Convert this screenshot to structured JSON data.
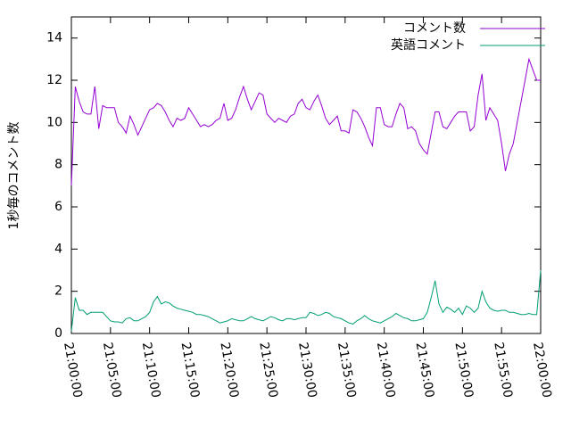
{
  "chart_data": {
    "type": "line",
    "ylabel": "1秒毎のコメント数",
    "x": [
      "21:00:00",
      "21:00:30",
      "21:01:00",
      "21:01:30",
      "21:02:00",
      "21:02:30",
      "21:03:00",
      "21:03:30",
      "21:04:00",
      "21:04:30",
      "21:05:00",
      "21:05:30",
      "21:06:00",
      "21:06:30",
      "21:07:00",
      "21:07:30",
      "21:08:00",
      "21:08:30",
      "21:09:00",
      "21:09:30",
      "21:10:00",
      "21:10:30",
      "21:11:00",
      "21:11:30",
      "21:12:00",
      "21:12:30",
      "21:13:00",
      "21:13:30",
      "21:14:00",
      "21:14:30",
      "21:15:00",
      "21:15:30",
      "21:16:00",
      "21:16:30",
      "21:17:00",
      "21:17:30",
      "21:18:00",
      "21:18:30",
      "21:19:00",
      "21:19:30",
      "21:20:00",
      "21:20:30",
      "21:21:00",
      "21:21:30",
      "21:22:00",
      "21:22:30",
      "21:23:00",
      "21:23:30",
      "21:24:00",
      "21:24:30",
      "21:25:00",
      "21:25:30",
      "21:26:00",
      "21:26:30",
      "21:27:00",
      "21:27:30",
      "21:28:00",
      "21:28:30",
      "21:29:00",
      "21:29:30",
      "21:30:00",
      "21:30:30",
      "21:31:00",
      "21:31:30",
      "21:32:00",
      "21:32:30",
      "21:33:00",
      "21:33:30",
      "21:34:00",
      "21:34:30",
      "21:35:00",
      "21:35:30",
      "21:36:00",
      "21:36:30",
      "21:37:00",
      "21:37:30",
      "21:38:00",
      "21:38:30",
      "21:39:00",
      "21:39:30",
      "21:40:00",
      "21:40:30",
      "21:41:00",
      "21:41:30",
      "21:42:00",
      "21:42:30",
      "21:43:00",
      "21:43:30",
      "21:44:00",
      "21:44:30",
      "21:45:00",
      "21:45:30",
      "21:46:00",
      "21:46:30",
      "21:47:00",
      "21:47:30",
      "21:48:00",
      "21:48:30",
      "21:49:00",
      "21:49:30",
      "21:50:00",
      "21:50:30",
      "21:51:00",
      "21:51:30",
      "21:52:00",
      "21:52:30",
      "21:53:00",
      "21:53:30",
      "21:54:00",
      "21:54:30",
      "21:55:00",
      "21:55:30",
      "21:56:00",
      "21:56:30",
      "21:57:00",
      "21:57:30",
      "21:58:00",
      "21:58:30",
      "21:59:00",
      "21:59:30",
      "22:00:00"
    ],
    "series": [
      {
        "name": "コメント数",
        "color": "#9400d3",
        "values": [
          7.0,
          11.7,
          11.0,
          10.5,
          10.4,
          10.4,
          11.7,
          9.7,
          10.8,
          10.7,
          10.7,
          10.7,
          10.0,
          9.8,
          9.5,
          10.3,
          9.9,
          9.4,
          9.8,
          10.2,
          10.6,
          10.7,
          10.9,
          10.8,
          10.5,
          10.1,
          9.8,
          10.2,
          10.1,
          10.2,
          10.7,
          10.4,
          10.1,
          9.8,
          9.9,
          9.8,
          9.9,
          10.1,
          10.2,
          10.9,
          10.1,
          10.2,
          10.6,
          11.2,
          11.7,
          11.1,
          10.6,
          11.0,
          11.4,
          11.3,
          10.4,
          10.2,
          10.0,
          10.2,
          10.1,
          10.0,
          10.3,
          10.4,
          10.9,
          11.1,
          10.7,
          10.6,
          11.0,
          11.3,
          10.8,
          10.2,
          9.9,
          10.1,
          10.3,
          9.6,
          9.6,
          9.5,
          10.6,
          10.5,
          10.2,
          9.8,
          9.3,
          8.9,
          10.7,
          10.7,
          9.9,
          9.8,
          9.8,
          10.4,
          10.9,
          10.7,
          9.7,
          9.8,
          9.6,
          9.0,
          8.7,
          8.5,
          9.5,
          10.5,
          10.5,
          9.8,
          9.7,
          10.0,
          10.3,
          10.5,
          10.5,
          10.5,
          9.6,
          9.8,
          11.3,
          12.3,
          10.1,
          10.7,
          10.4,
          10.1,
          9.0,
          7.7,
          8.5,
          9.0,
          10.0,
          11.0,
          12.0,
          13.0,
          12.5,
          12.0,
          12.0
        ]
      },
      {
        "name": "英語コメント",
        "color": "#009e73",
        "values": [
          0.1,
          1.7,
          1.1,
          1.1,
          0.9,
          1.0,
          1.0,
          1.0,
          1.0,
          0.8,
          0.6,
          0.55,
          0.55,
          0.5,
          0.7,
          0.75,
          0.6,
          0.6,
          0.7,
          0.8,
          1.0,
          1.5,
          1.75,
          1.4,
          1.5,
          1.45,
          1.3,
          1.2,
          1.15,
          1.1,
          1.05,
          1.0,
          0.9,
          0.9,
          0.85,
          0.8,
          0.7,
          0.6,
          0.5,
          0.55,
          0.6,
          0.7,
          0.65,
          0.6,
          0.6,
          0.7,
          0.8,
          0.7,
          0.65,
          0.6,
          0.7,
          0.8,
          0.75,
          0.65,
          0.6,
          0.7,
          0.7,
          0.65,
          0.7,
          0.75,
          0.75,
          1.0,
          0.95,
          0.85,
          0.9,
          1.0,
          0.95,
          0.8,
          0.75,
          0.7,
          0.6,
          0.5,
          0.45,
          0.6,
          0.7,
          0.85,
          0.7,
          0.6,
          0.55,
          0.5,
          0.6,
          0.7,
          0.8,
          0.95,
          0.85,
          0.75,
          0.7,
          0.6,
          0.6,
          0.65,
          0.7,
          1.0,
          1.7,
          2.5,
          1.4,
          1.0,
          1.25,
          1.15,
          1.0,
          1.2,
          0.9,
          1.3,
          1.2,
          1.0,
          1.2,
          2.0,
          1.5,
          1.2,
          1.1,
          1.05,
          1.1,
          1.1,
          1.0,
          1.0,
          0.95,
          0.9,
          0.9,
          0.95,
          0.9,
          0.9,
          3.0
        ]
      }
    ],
    "xlim": [
      "21:00:00",
      "22:00:00"
    ],
    "xticks": [
      "21:00:00",
      "21:05:00",
      "21:10:00",
      "21:15:00",
      "21:20:00",
      "21:25:00",
      "21:30:00",
      "21:35:00",
      "21:40:00",
      "21:45:00",
      "21:50:00",
      "21:55:00",
      "22:00:00"
    ],
    "ylim": [
      0,
      15
    ],
    "yticks": [
      0,
      2,
      4,
      6,
      8,
      10,
      12,
      14
    ],
    "legend": "top-right"
  }
}
